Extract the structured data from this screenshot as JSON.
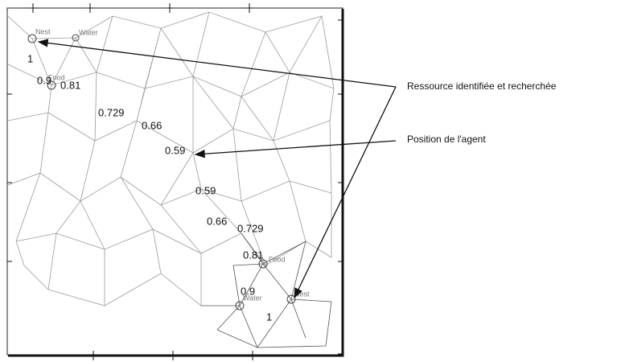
{
  "annotations": {
    "resource": "Ressource identifiée et recherchée",
    "agent": "Position de l'agent"
  },
  "node_labels": [
    "Nest",
    "Water",
    "Food",
    "Food",
    "Water",
    "Nest"
  ],
  "values": [
    1,
    0.9,
    0.81,
    0.729,
    0.66,
    0.59,
    0.59,
    0.66,
    0.729,
    0.81,
    0.9,
    1
  ]
}
